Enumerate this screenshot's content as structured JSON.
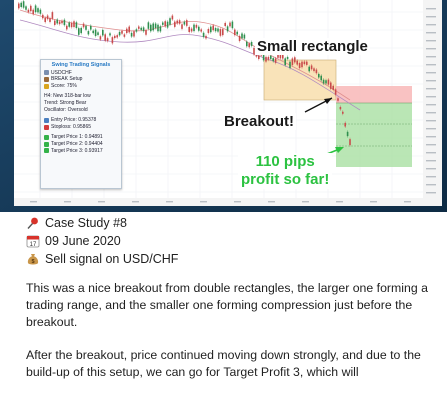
{
  "chart": {
    "signal_panel": {
      "title": "Swing Trading Signals",
      "pair": "USDCHF",
      "setup": "BREAK Setup",
      "score": "Score: 75%",
      "lines": [
        "H4: New 318-bar low",
        "Trend: Strong Bear",
        "Oscillator: Oversold"
      ],
      "entry": "Entry Price: 0.95378",
      "stoploss": "Stoploss: 0.95865",
      "targets": [
        "Target Price 1: 0.94891",
        "Target Price 2: 0.94404",
        "Target Price 3: 0.93917"
      ]
    },
    "annotations": {
      "small_rectangle": "Small rectangle",
      "breakout": "Breakout!",
      "pips_line1": "110 pips",
      "pips_line2": "profit so far!"
    },
    "colors": {
      "pips_green": "#2cc241",
      "bull_candle": "#2f8f4e",
      "bear_candle": "#c94b4b",
      "stop_zone": "#f8b7b7",
      "profit_zone": "#a9e0a3"
    }
  },
  "case": {
    "title": "Case Study #8",
    "date": "09 June 2020",
    "signal": "Sell signal on USD/CHF",
    "icons": [
      "pushpin-icon",
      "calendar-icon",
      "money-bag-icon"
    ]
  },
  "paragraphs": [
    "This was a nice breakout from double rectangles, the larger one forming a trading range, and the smaller one forming compression just before the breakout.",
    "After the breakout, price continued moving down strongly, and due to the build-up of this setup, we can go for Target Profit 3, which will"
  ]
}
